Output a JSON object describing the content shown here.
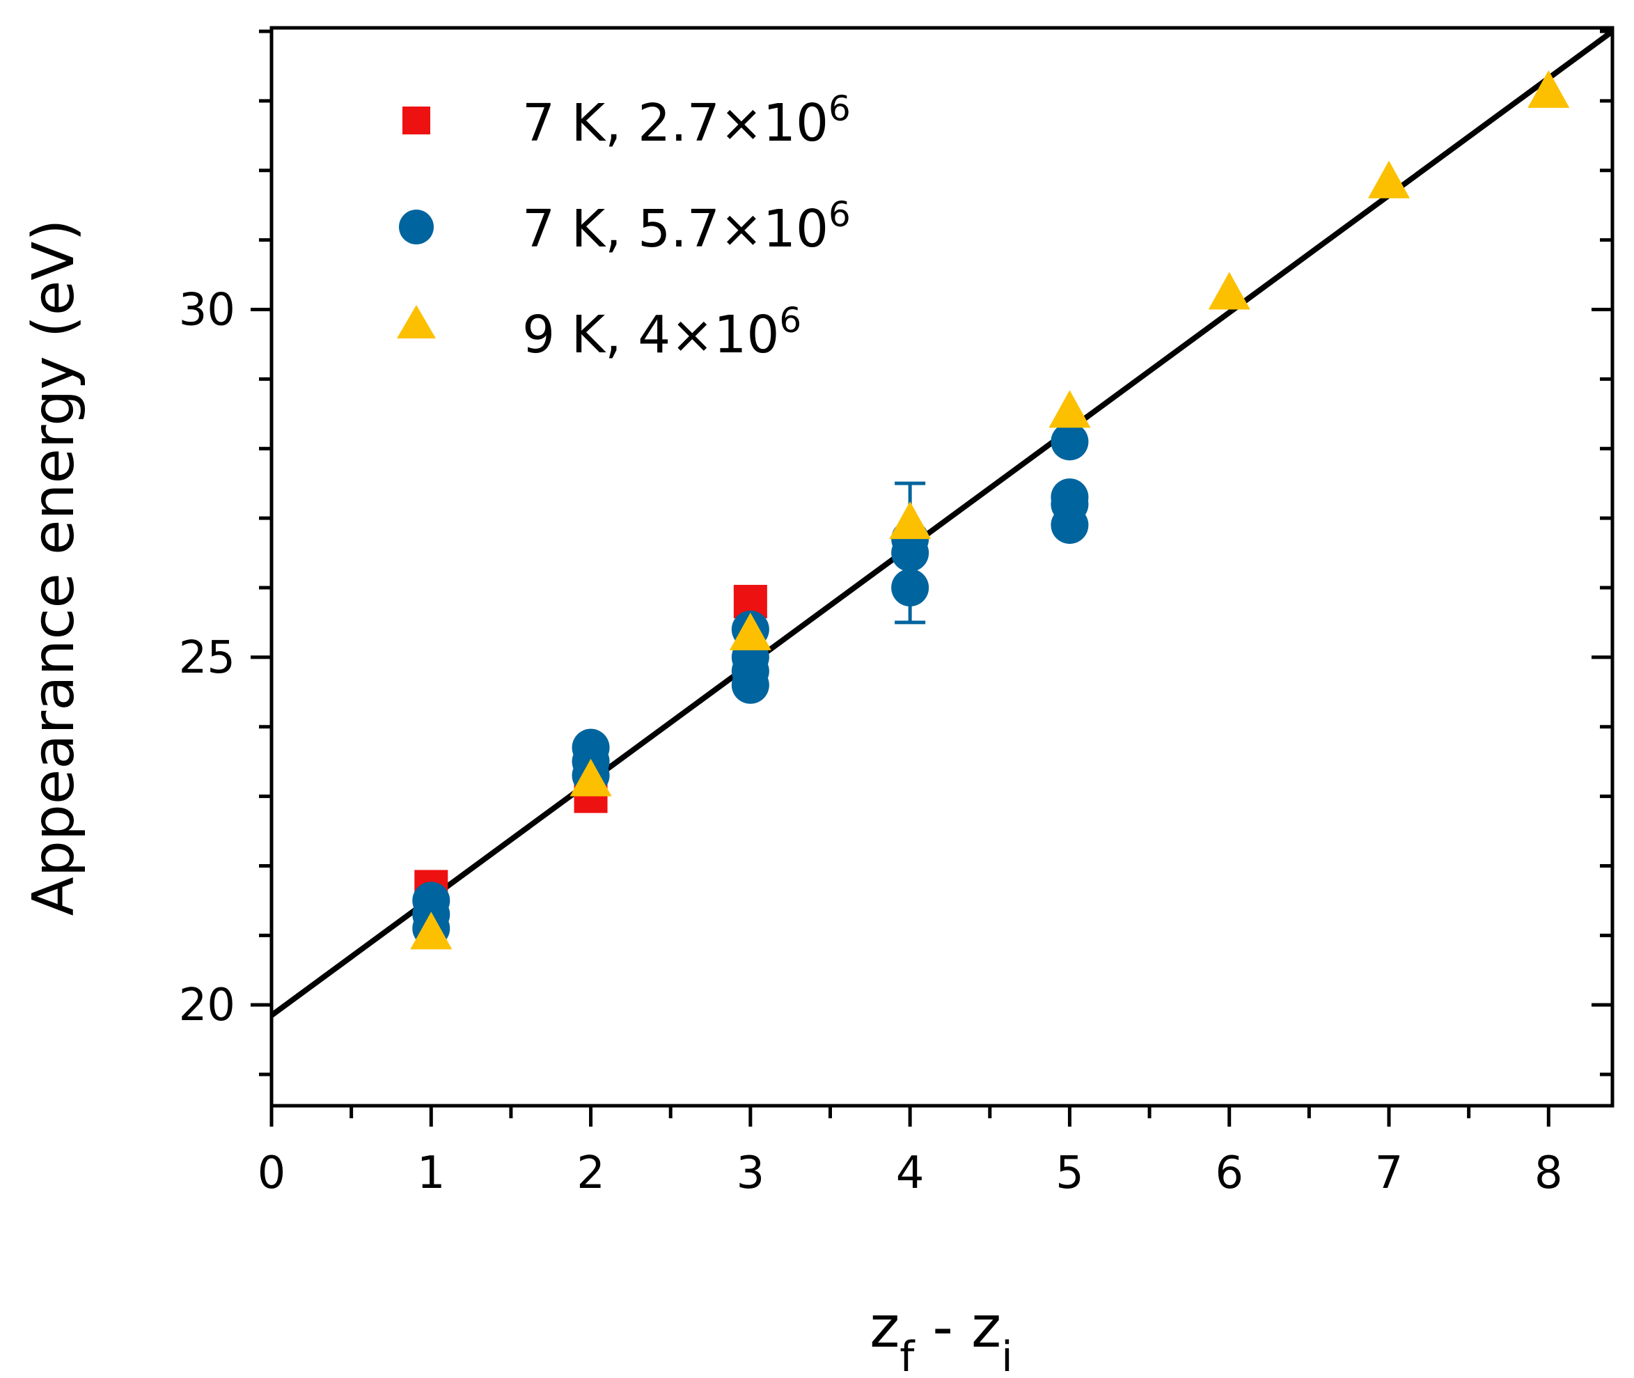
{
  "chart_data": {
    "type": "scatter",
    "xlabel_main": "z",
    "xlabel_sub1": "f",
    "xlabel_sep": " - ",
    "xlabel_main2": "z",
    "xlabel_sub2": "i",
    "ylabel": "Appearance energy (eV)",
    "xlim": [
      0,
      8.4
    ],
    "ylim": [
      18.55,
      34.05
    ],
    "xticks": [
      0,
      1,
      2,
      3,
      4,
      5,
      6,
      7,
      8
    ],
    "yticks": [
      20,
      25,
      30
    ],
    "grid": false,
    "legend_position": "top-left",
    "series": [
      {
        "name_base": "7 K, 2.7×10",
        "name_exp": "6",
        "marker": "square",
        "color": "#ee1111",
        "points": [
          [
            1,
            21.7
          ],
          [
            2,
            23.0
          ],
          [
            3,
            25.8
          ]
        ]
      },
      {
        "name_base": "7 K, 5.7×10",
        "name_exp": "6",
        "marker": "circle",
        "color": "#00649e",
        "points": [
          [
            1,
            21.1
          ],
          [
            1,
            21.3
          ],
          [
            1,
            21.5
          ],
          [
            2,
            23.3
          ],
          [
            2,
            23.5
          ],
          [
            2,
            23.7
          ],
          [
            3,
            24.6
          ],
          [
            3,
            24.8
          ],
          [
            3,
            25.0
          ],
          [
            3,
            25.4
          ],
          [
            4,
            26.0
          ],
          [
            4,
            26.5
          ],
          [
            4,
            26.7
          ],
          [
            5,
            26.9
          ],
          [
            5,
            27.2
          ],
          [
            5,
            27.3
          ],
          [
            5,
            28.1
          ]
        ],
        "error_bars": [
          {
            "x": 4,
            "y": 26.5,
            "low": 25.5,
            "high": 27.5
          }
        ]
      },
      {
        "name_base": "9 K, 4×10",
        "name_exp": "6",
        "marker": "triangle",
        "color": "#fcc000",
        "points": [
          [
            1,
            21.0
          ],
          [
            2,
            23.2
          ],
          [
            3,
            25.3
          ],
          [
            4,
            26.9
          ],
          [
            5,
            28.5
          ],
          [
            6,
            30.2
          ],
          [
            7,
            31.8
          ],
          [
            8,
            33.1
          ]
        ]
      }
    ],
    "fit_line": {
      "type": "linear",
      "color": "#000000",
      "intercept": 19.85,
      "slope": 1.6845
    }
  }
}
